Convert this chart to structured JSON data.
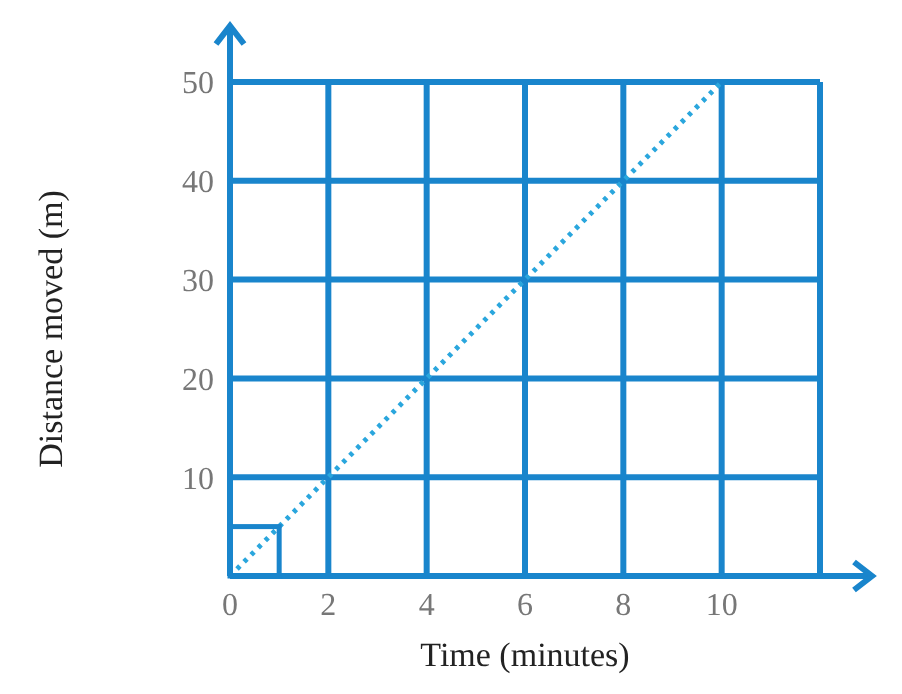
{
  "chart_data": {
    "type": "line",
    "xlabel": "Time (minutes)",
    "ylabel": "Distance moved (m)",
    "x": [
      0,
      10
    ],
    "series": [
      {
        "color": "#2aa6dd",
        "values": [
          0,
          50
        ]
      }
    ],
    "xlim": [
      0,
      12
    ],
    "ylim": [
      0,
      50
    ],
    "xticks": [
      0,
      2,
      4,
      6,
      8,
      10,
      {
        "value": 12,
        "label": null
      }
    ],
    "yticks": [
      {
        "value": 0,
        "label": null
      },
      10,
      20,
      30,
      40,
      50
    ],
    "grid": true,
    "marker": "none",
    "line_style": "dotted",
    "legend": false
  }
}
